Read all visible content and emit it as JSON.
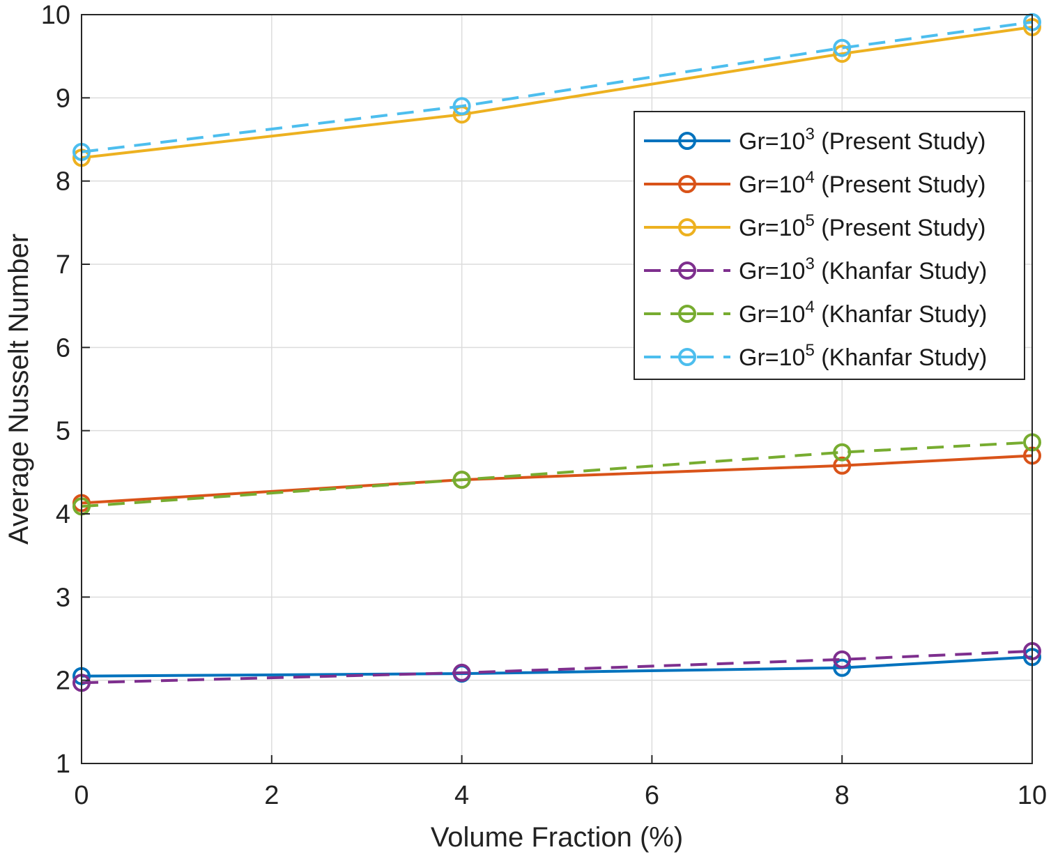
{
  "chart_data": {
    "type": "line",
    "title": "",
    "xlabel": "Volume Fraction (%)",
    "ylabel": "Average Nusselt Number",
    "xlim": [
      0,
      10
    ],
    "ylim": [
      1,
      10
    ],
    "xticks": [
      0,
      2,
      4,
      6,
      8,
      10
    ],
    "yticks": [
      1,
      2,
      3,
      4,
      5,
      6,
      7,
      8,
      9,
      10
    ],
    "grid": true,
    "legend_position": "upper-right",
    "x": [
      0,
      4,
      8,
      10
    ],
    "series": [
      {
        "name": "Gr=10^3 (Present Study)",
        "label_base": "Gr=10",
        "label_exp": "3",
        "label_suffix": " (Present Study)",
        "style": "solid",
        "color": "#0072BD",
        "values": [
          2.05,
          2.08,
          2.15,
          2.28
        ]
      },
      {
        "name": "Gr=10^4 (Present Study)",
        "label_base": "Gr=10",
        "label_exp": "4",
        "label_suffix": " (Present Study)",
        "style": "solid",
        "color": "#D95319",
        "values": [
          4.13,
          4.41,
          4.58,
          4.7
        ]
      },
      {
        "name": "Gr=10^5 (Present Study)",
        "label_base": "Gr=10",
        "label_exp": "5",
        "label_suffix": " (Present Study)",
        "style": "solid",
        "color": "#EDB120",
        "values": [
          8.28,
          8.8,
          9.53,
          9.85
        ]
      },
      {
        "name": "Gr=10^3 (Khanfar Study)",
        "label_base": "Gr=10",
        "label_exp": "3",
        "label_suffix": " (Khanfar Study)",
        "style": "dashed",
        "color": "#7E2F8E",
        "values": [
          1.97,
          2.09,
          2.25,
          2.35
        ]
      },
      {
        "name": "Gr=10^4 (Khanfar Study)",
        "label_base": "Gr=10",
        "label_exp": "4",
        "label_suffix": " (Khanfar Study)",
        "style": "dashed",
        "color": "#77AC30",
        "values": [
          4.09,
          4.41,
          4.74,
          4.86
        ]
      },
      {
        "name": "Gr=10^5 (Khanfar Study)",
        "label_base": "Gr=10",
        "label_exp": "5",
        "label_suffix": " (Khanfar Study)",
        "style": "dashed",
        "color": "#4DBEEE",
        "values": [
          8.35,
          8.9,
          9.6,
          9.91
        ]
      }
    ]
  }
}
